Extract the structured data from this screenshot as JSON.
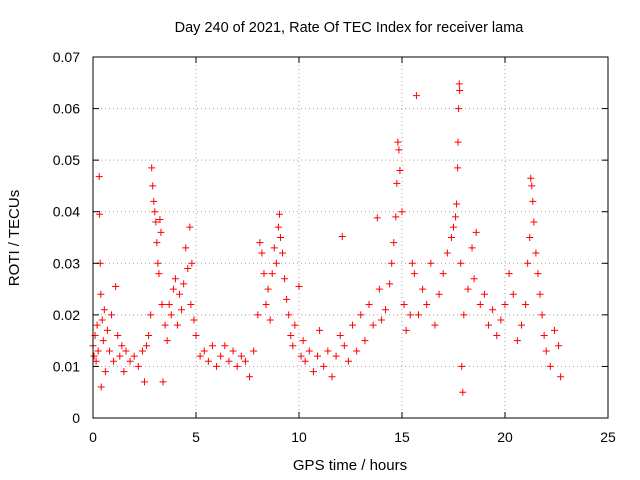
{
  "chart_data": {
    "type": "scatter",
    "title": "Day 240 of 2021, Rate Of TEC Index for receiver lama",
    "xlabel": "GPS time / hours",
    "ylabel": "ROTI / TECUs",
    "xlim": [
      0,
      25
    ],
    "ylim": [
      0,
      0.07
    ],
    "x_ticks": [
      0,
      5,
      10,
      15,
      20,
      25
    ],
    "x_tick_labels": [
      "0",
      "5",
      "10",
      "15",
      "20",
      "25"
    ],
    "y_ticks": [
      0,
      0.01,
      0.02,
      0.03,
      0.04,
      0.05,
      0.06,
      0.07
    ],
    "y_tick_labels": [
      "0",
      "0.01",
      "0.02",
      "0.03",
      "0.04",
      "0.05",
      "0.06",
      "0.07"
    ],
    "grid": true,
    "marker": "plus",
    "color": "#ff0000",
    "series": [
      {
        "points": [
          [
            0.0,
            0.014
          ],
          [
            0.05,
            0.012
          ],
          [
            0.1,
            0.016
          ],
          [
            0.15,
            0.011
          ],
          [
            0.2,
            0.018
          ],
          [
            0.25,
            0.013
          ],
          [
            0.3,
            0.0468
          ],
          [
            0.32,
            0.0395
          ],
          [
            0.35,
            0.03
          ],
          [
            0.38,
            0.024
          ],
          [
            0.4,
            0.006
          ],
          [
            0.45,
            0.019
          ],
          [
            0.5,
            0.015
          ],
          [
            0.55,
            0.021
          ],
          [
            0.6,
            0.009
          ],
          [
            0.7,
            0.017
          ],
          [
            0.8,
            0.013
          ],
          [
            0.9,
            0.02
          ],
          [
            1.0,
            0.011
          ],
          [
            1.1,
            0.0255
          ],
          [
            1.2,
            0.016
          ],
          [
            1.3,
            0.012
          ],
          [
            1.4,
            0.014
          ],
          [
            1.5,
            0.009
          ],
          [
            1.6,
            0.013
          ],
          [
            1.8,
            0.011
          ],
          [
            2.0,
            0.012
          ],
          [
            2.2,
            0.01
          ],
          [
            2.4,
            0.013
          ],
          [
            2.5,
            0.007
          ],
          [
            2.6,
            0.014
          ],
          [
            2.7,
            0.016
          ],
          [
            2.8,
            0.02
          ],
          [
            2.85,
            0.0485
          ],
          [
            2.9,
            0.045
          ],
          [
            2.95,
            0.042
          ],
          [
            3.0,
            0.04
          ],
          [
            3.05,
            0.038
          ],
          [
            3.1,
            0.034
          ],
          [
            3.15,
            0.03
          ],
          [
            3.2,
            0.028
          ],
          [
            3.25,
            0.0385
          ],
          [
            3.3,
            0.036
          ],
          [
            3.35,
            0.022
          ],
          [
            3.4,
            0.007
          ],
          [
            3.5,
            0.018
          ],
          [
            3.6,
            0.015
          ],
          [
            3.7,
            0.022
          ],
          [
            3.8,
            0.02
          ],
          [
            3.9,
            0.025
          ],
          [
            4.0,
            0.027
          ],
          [
            4.1,
            0.018
          ],
          [
            4.2,
            0.024
          ],
          [
            4.3,
            0.021
          ],
          [
            4.4,
            0.026
          ],
          [
            4.5,
            0.033
          ],
          [
            4.6,
            0.029
          ],
          [
            4.7,
            0.037
          ],
          [
            4.75,
            0.022
          ],
          [
            4.8,
            0.03
          ],
          [
            4.9,
            0.019
          ],
          [
            5.0,
            0.016
          ],
          [
            5.2,
            0.012
          ],
          [
            5.4,
            0.013
          ],
          [
            5.6,
            0.011
          ],
          [
            5.8,
            0.014
          ],
          [
            6.0,
            0.01
          ],
          [
            6.2,
            0.012
          ],
          [
            6.4,
            0.014
          ],
          [
            6.6,
            0.011
          ],
          [
            6.8,
            0.013
          ],
          [
            7.0,
            0.01
          ],
          [
            7.2,
            0.012
          ],
          [
            7.4,
            0.011
          ],
          [
            7.6,
            0.008
          ],
          [
            7.8,
            0.013
          ],
          [
            8.0,
            0.02
          ],
          [
            8.1,
            0.034
          ],
          [
            8.2,
            0.032
          ],
          [
            8.3,
            0.028
          ],
          [
            8.4,
            0.022
          ],
          [
            8.5,
            0.025
          ],
          [
            8.6,
            0.019
          ],
          [
            8.7,
            0.028
          ],
          [
            8.8,
            0.033
          ],
          [
            8.9,
            0.03
          ],
          [
            9.0,
            0.037
          ],
          [
            9.05,
            0.0395
          ],
          [
            9.1,
            0.035
          ],
          [
            9.2,
            0.032
          ],
          [
            9.3,
            0.027
          ],
          [
            9.4,
            0.023
          ],
          [
            9.5,
            0.02
          ],
          [
            9.6,
            0.016
          ],
          [
            9.7,
            0.014
          ],
          [
            9.8,
            0.018
          ],
          [
            10.0,
            0.0255
          ],
          [
            10.1,
            0.012
          ],
          [
            10.2,
            0.015
          ],
          [
            10.3,
            0.011
          ],
          [
            10.5,
            0.013
          ],
          [
            10.7,
            0.009
          ],
          [
            10.9,
            0.012
          ],
          [
            11.0,
            0.017
          ],
          [
            11.2,
            0.01
          ],
          [
            11.4,
            0.013
          ],
          [
            11.6,
            0.008
          ],
          [
            11.8,
            0.012
          ],
          [
            12.0,
            0.016
          ],
          [
            12.1,
            0.0352
          ],
          [
            12.2,
            0.014
          ],
          [
            12.4,
            0.011
          ],
          [
            12.6,
            0.018
          ],
          [
            12.8,
            0.013
          ],
          [
            13.0,
            0.02
          ],
          [
            13.2,
            0.015
          ],
          [
            13.4,
            0.022
          ],
          [
            13.6,
            0.018
          ],
          [
            13.8,
            0.0388
          ],
          [
            13.9,
            0.025
          ],
          [
            14.0,
            0.019
          ],
          [
            14.2,
            0.021
          ],
          [
            14.4,
            0.026
          ],
          [
            14.5,
            0.03
          ],
          [
            14.6,
            0.034
          ],
          [
            14.7,
            0.039
          ],
          [
            14.75,
            0.0455
          ],
          [
            14.8,
            0.0535
          ],
          [
            14.85,
            0.052
          ],
          [
            14.9,
            0.048
          ],
          [
            15.0,
            0.04
          ],
          [
            15.1,
            0.022
          ],
          [
            15.2,
            0.017
          ],
          [
            15.4,
            0.02
          ],
          [
            15.5,
            0.03
          ],
          [
            15.6,
            0.028
          ],
          [
            15.7,
            0.0625
          ],
          [
            15.8,
            0.02
          ],
          [
            16.0,
            0.025
          ],
          [
            16.2,
            0.022
          ],
          [
            16.4,
            0.03
          ],
          [
            16.6,
            0.018
          ],
          [
            16.8,
            0.024
          ],
          [
            17.0,
            0.028
          ],
          [
            17.2,
            0.032
          ],
          [
            17.4,
            0.035
          ],
          [
            17.5,
            0.037
          ],
          [
            17.6,
            0.039
          ],
          [
            17.65,
            0.0415
          ],
          [
            17.7,
            0.0485
          ],
          [
            17.72,
            0.0535
          ],
          [
            17.75,
            0.06
          ],
          [
            17.78,
            0.0648
          ],
          [
            17.8,
            0.0635
          ],
          [
            17.85,
            0.03
          ],
          [
            17.9,
            0.01
          ],
          [
            17.95,
            0.005
          ],
          [
            18.0,
            0.02
          ],
          [
            18.2,
            0.025
          ],
          [
            18.4,
            0.033
          ],
          [
            18.5,
            0.027
          ],
          [
            18.6,
            0.036
          ],
          [
            18.8,
            0.022
          ],
          [
            19.0,
            0.024
          ],
          [
            19.2,
            0.018
          ],
          [
            19.4,
            0.021
          ],
          [
            19.6,
            0.016
          ],
          [
            19.8,
            0.019
          ],
          [
            20.0,
            0.022
          ],
          [
            20.2,
            0.028
          ],
          [
            20.4,
            0.024
          ],
          [
            20.6,
            0.015
          ],
          [
            20.8,
            0.018
          ],
          [
            21.0,
            0.022
          ],
          [
            21.1,
            0.03
          ],
          [
            21.2,
            0.035
          ],
          [
            21.25,
            0.0465
          ],
          [
            21.3,
            0.045
          ],
          [
            21.35,
            0.042
          ],
          [
            21.4,
            0.038
          ],
          [
            21.5,
            0.032
          ],
          [
            21.6,
            0.028
          ],
          [
            21.7,
            0.024
          ],
          [
            21.8,
            0.02
          ],
          [
            21.9,
            0.016
          ],
          [
            22.0,
            0.013
          ],
          [
            22.2,
            0.01
          ],
          [
            22.4,
            0.017
          ],
          [
            22.6,
            0.014
          ],
          [
            22.7,
            0.008
          ]
        ]
      }
    ]
  }
}
